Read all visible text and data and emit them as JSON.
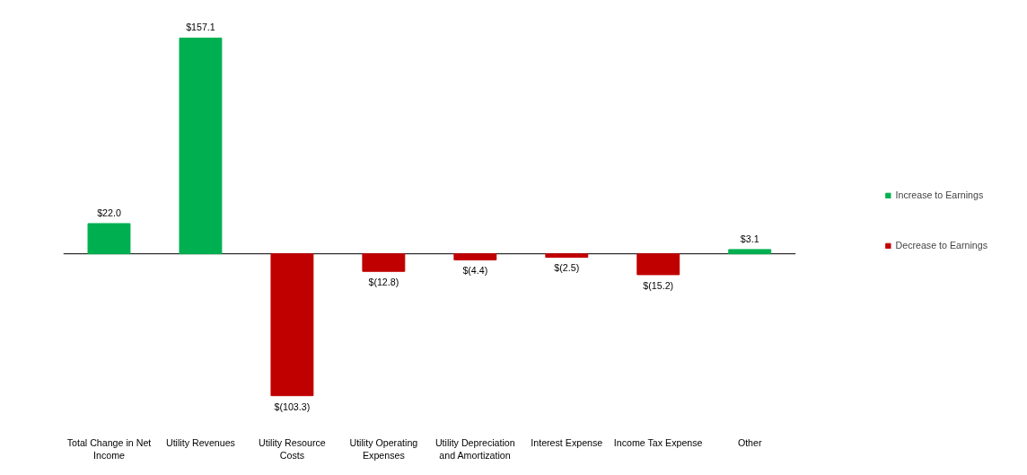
{
  "chart_data": {
    "type": "bar",
    "categories": [
      "Total Change in Net Income",
      "Utility Revenues",
      "Utility Resource Costs",
      "Utility Operating Expenses",
      "Utility Depreciation and Amortization",
      "Interest Expense",
      "Income Tax Expense",
      "Other"
    ],
    "series": [
      {
        "name": "Increase to Earnings",
        "color": "#00b050",
        "values": [
          22.0,
          157.1,
          null,
          null,
          null,
          null,
          null,
          3.1
        ],
        "value_labels": [
          "$22.0",
          "$157.1",
          null,
          null,
          null,
          null,
          null,
          "$3.1"
        ]
      },
      {
        "name": "Decrease to Earnings",
        "color": "#c00000",
        "values": [
          null,
          null,
          -103.3,
          -12.8,
          -4.4,
          -2.5,
          -15.2,
          null
        ],
        "value_labels": [
          null,
          null,
          "$(103.3)",
          "$(12.8)",
          "$(4.4)",
          "$(2.5)",
          "$(15.2)",
          null
        ]
      }
    ],
    "legend": "right",
    "grid": false
  }
}
